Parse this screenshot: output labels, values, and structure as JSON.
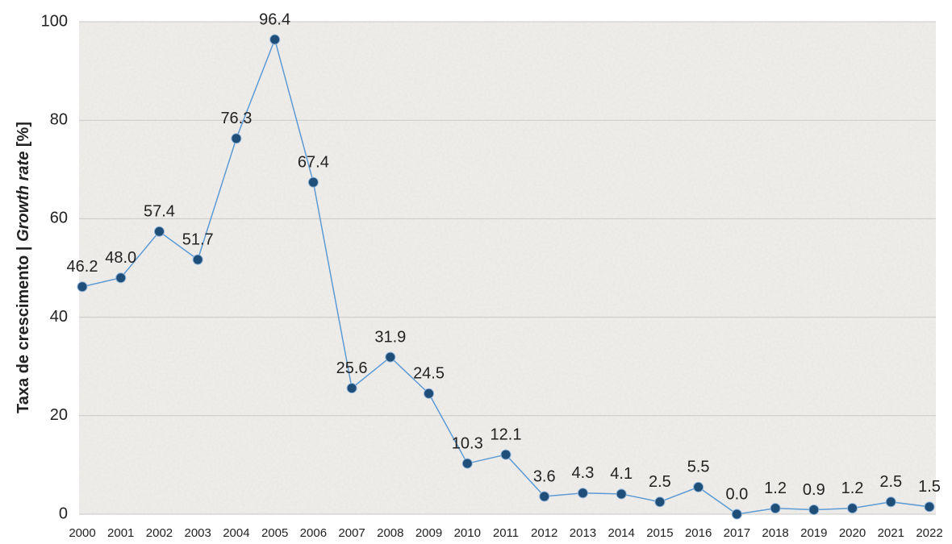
{
  "chart_data": {
    "type": "line",
    "ylabel": [
      "Taxa de crescimento | ",
      "Growth rate",
      " [%]"
    ],
    "categories": [
      "2000",
      "2001",
      "2002",
      "2003",
      "2004",
      "2005",
      "2006",
      "2007",
      "2008",
      "2009",
      "2010",
      "2011",
      "2012",
      "2013",
      "2014",
      "2015",
      "2016",
      "2017",
      "2018",
      "2019",
      "2020",
      "2021",
      "2022"
    ],
    "series": [
      {
        "color": "#5b9bd5",
        "marker_color": "#1f4e79",
        "values": [
          46.2,
          48.0,
          57.4,
          51.7,
          76.3,
          96.4,
          67.4,
          25.6,
          31.9,
          24.5,
          10.3,
          12.1,
          3.6,
          4.3,
          4.1,
          2.5,
          5.5,
          0.0,
          1.2,
          0.9,
          1.2,
          2.5,
          1.5
        ],
        "value_labels": [
          "46.2",
          "48.0",
          "57.4",
          "51.7",
          "76.3",
          "96.4",
          "67.4",
          "25.6",
          "31.9",
          "24.5",
          "10.3",
          "12.1",
          "3.6",
          "4.3",
          "4.1",
          "2.5",
          "5.5",
          "0.0",
          "1.2",
          "0.9",
          "1.2",
          "2.5",
          "1.5"
        ]
      }
    ],
    "ylim": [
      0,
      100
    ],
    "yticks": [
      0,
      20,
      40,
      60,
      80,
      100
    ],
    "grid": true
  }
}
